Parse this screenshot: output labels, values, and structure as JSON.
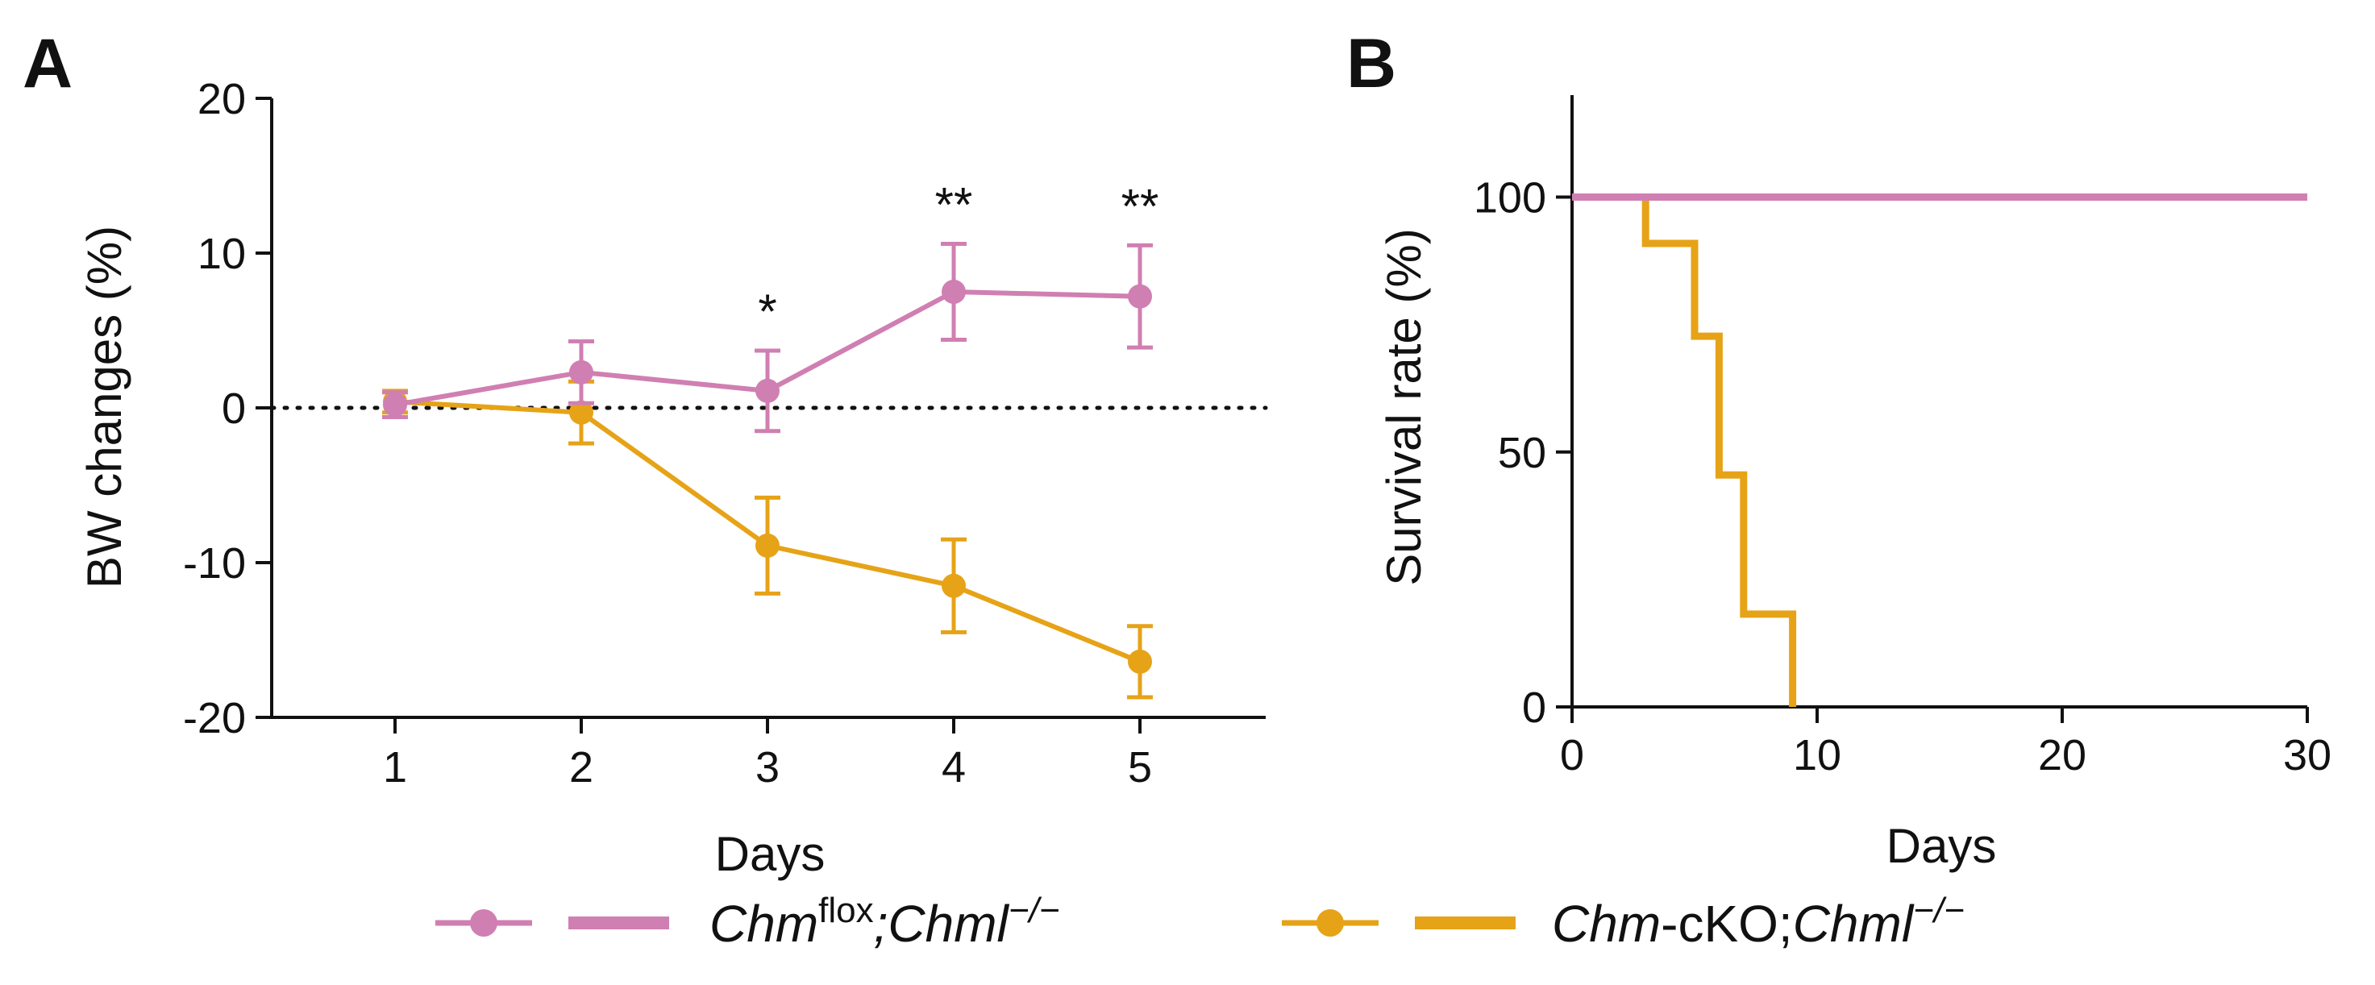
{
  "chart_data": [
    {
      "panel": "A",
      "type": "line",
      "xlabel": "Days",
      "ylabel": "BW changes (%)",
      "x": [
        1,
        2,
        3,
        4,
        5
      ],
      "x_ticks": [
        "1",
        "2",
        "3",
        "4",
        "5"
      ],
      "ylim": [
        -20,
        20
      ],
      "y_ticks": [
        "20",
        "10",
        "0",
        "-10",
        "-20"
      ],
      "reference_line": {
        "y": 0,
        "style": "dotted"
      },
      "series": [
        {
          "name": "Chmflox;Chml−/−",
          "color": "#d07fb2",
          "values": [
            0.2,
            2.3,
            1.1,
            7.5,
            7.2
          ],
          "errors": [
            0.8,
            2.0,
            2.6,
            3.1,
            3.3
          ]
        },
        {
          "name": "Chm-cKO;Chml−/−",
          "color": "#e6a317",
          "values": [
            0.4,
            -0.3,
            -8.9,
            -11.5,
            -16.4
          ],
          "errors": [
            0.7,
            2.0,
            3.1,
            3.0,
            2.3
          ]
        }
      ],
      "significance": [
        {
          "x": 3,
          "label": "*"
        },
        {
          "x": 4,
          "label": "**"
        },
        {
          "x": 5,
          "label": "**"
        }
      ]
    },
    {
      "panel": "B",
      "type": "line",
      "subtype": "kaplan-meier",
      "xlabel": "Days",
      "ylabel": "Survival rate (%)",
      "xlim": [
        0,
        30
      ],
      "x_ticks": [
        "0",
        "10",
        "20",
        "30"
      ],
      "ylim": [
        0,
        120
      ],
      "y_ticks": [
        "100",
        "50",
        "0"
      ],
      "series": [
        {
          "name": "Chmflox;Chml−/−",
          "color": "#d07fb2",
          "steps": [
            [
              0,
              100
            ],
            [
              30,
              100
            ]
          ]
        },
        {
          "name": "Chm-cKO;Chml−/−",
          "color": "#e6a317",
          "steps": [
            [
              0,
              100
            ],
            [
              3,
              90.9
            ],
            [
              5,
              72.7
            ],
            [
              6,
              45.5
            ],
            [
              7,
              18.2
            ],
            [
              9,
              0
            ]
          ]
        }
      ]
    }
  ],
  "legend": [
    {
      "color": "#d07fb2",
      "main": "Chm",
      "sup": "flox",
      "rest": ";Chml",
      "sup2": "−/−"
    },
    {
      "color": "#e6a317",
      "main": "Chm",
      "plain": "-cKO;",
      "rest": "Chml",
      "sup2": "−/−"
    }
  ]
}
